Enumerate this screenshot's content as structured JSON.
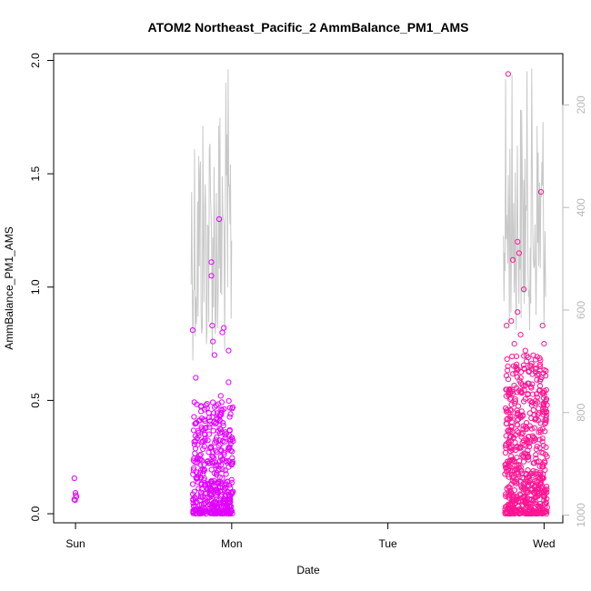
{
  "chart_data": {
    "type": "scatter",
    "title": "ATOM2 Northeast_Pacific_2 AmmBalance_PM1_AMS",
    "xlabel": "Date",
    "ylabel": "AmmBalance_PM1_AMS",
    "x_ticks": [
      "Sun",
      "Mon",
      "Tue",
      "Wed"
    ],
    "x_tick_days": [
      0,
      1,
      2,
      3
    ],
    "xlim_days": [
      -0.14,
      3.12
    ],
    "ylim": [
      -0.04,
      2.03
    ],
    "y_ticks": [
      0.0,
      0.5,
      1.0,
      1.5,
      2.0
    ],
    "y_tick_labels": [
      "0.0",
      "0.5",
      "1.0",
      "1.5",
      "2.0"
    ],
    "right_axis": {
      "values": [
        200,
        400,
        600,
        800,
        1000
      ],
      "labels": [
        "200",
        "400",
        "600",
        "800",
        "1000"
      ],
      "reversed": true,
      "range": [
        100,
        1015
      ],
      "color": "#b8b8b8"
    },
    "grid": false,
    "legend": "none",
    "series": [
      {
        "color": "#e100ff",
        "clusters": [
          {
            "x_range_days": [
              -0.01,
              0.01
            ],
            "y_range": [
              0.06,
              0.18
            ],
            "count": 6
          },
          {
            "x_range_days": [
              0.75,
              1.01
            ],
            "y_range": [
              0.0,
              0.5
            ],
            "count": 420
          }
        ],
        "outliers": [
          {
            "x_day": 0.75,
            "y": 0.81
          },
          {
            "x_day": 0.77,
            "y": 0.6
          },
          {
            "x_day": 0.79,
            "y": 0.41
          },
          {
            "x_day": 0.87,
            "y": 1.11
          },
          {
            "x_day": 0.87,
            "y": 1.05
          },
          {
            "x_day": 0.875,
            "y": 0.83
          },
          {
            "x_day": 0.88,
            "y": 0.76
          },
          {
            "x_day": 0.89,
            "y": 0.7
          },
          {
            "x_day": 0.92,
            "y": 1.3
          },
          {
            "x_day": 0.93,
            "y": 0.52
          },
          {
            "x_day": 0.94,
            "y": 0.8
          },
          {
            "x_day": 0.95,
            "y": 0.82
          },
          {
            "x_day": 0.98,
            "y": 0.72
          },
          {
            "x_day": 0.98,
            "y": 0.58
          }
        ]
      },
      {
        "color": "#ff1493",
        "clusters": [
          {
            "x_range_days": [
              2.75,
              3.02
            ],
            "y_range": [
              0.0,
              0.7
            ],
            "count": 620
          }
        ],
        "outliers": [
          {
            "x_day": 2.77,
            "y": 1.94
          },
          {
            "x_day": 2.8,
            "y": 1.12
          },
          {
            "x_day": 2.83,
            "y": 1.2
          },
          {
            "x_day": 2.84,
            "y": 1.15
          },
          {
            "x_day": 2.87,
            "y": 0.99
          },
          {
            "x_day": 2.83,
            "y": 0.89
          },
          {
            "x_day": 2.79,
            "y": 0.85
          },
          {
            "x_day": 2.76,
            "y": 0.83
          },
          {
            "x_day": 2.85,
            "y": 0.79
          },
          {
            "x_day": 2.81,
            "y": 0.75
          },
          {
            "x_day": 2.88,
            "y": 0.72
          },
          {
            "x_day": 2.98,
            "y": 1.42
          },
          {
            "x_day": 2.99,
            "y": 0.83
          },
          {
            "x_day": 3.0,
            "y": 0.75
          }
        ]
      }
    ],
    "line_series": [
      {
        "axis": "right",
        "color": "#c8c8c8",
        "segments": [
          {
            "x_range_days": [
              0.74,
              1.0
            ],
            "value_range": [
              115,
              700
            ],
            "count": 70
          },
          {
            "x_range_days": [
              2.74,
              3.01
            ],
            "value_range": [
              115,
              640
            ],
            "count": 80
          }
        ]
      }
    ]
  }
}
